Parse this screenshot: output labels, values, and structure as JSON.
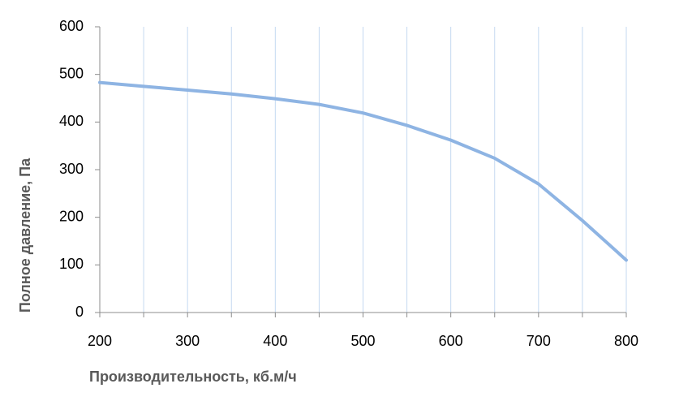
{
  "chart_data": {
    "type": "line",
    "x_label": "Производительность, кб.м/ч",
    "y_label": "Полное  давление, Па",
    "x": [
      200,
      250,
      300,
      350,
      400,
      450,
      500,
      550,
      600,
      650,
      700,
      750,
      800
    ],
    "series": [
      {
        "name": "Полное давление",
        "color": "#8eb4e3",
        "values": [
          483,
          475,
          467,
          459,
          449,
          437,
          419,
          393,
          362,
          324,
          270,
          193,
          110
        ]
      }
    ],
    "xlim": [
      200,
      800
    ],
    "xticks": [
      200,
      300,
      400,
      500,
      600,
      700,
      800
    ],
    "xminorticks": [
      250,
      350,
      450,
      550,
      650,
      750
    ],
    "ylim": [
      0,
      600
    ],
    "yticks": [
      0,
      100,
      200,
      300,
      400,
      500,
      600
    ],
    "grid": true
  }
}
